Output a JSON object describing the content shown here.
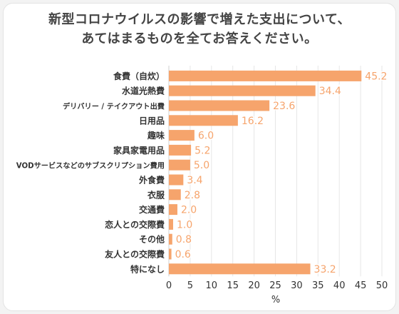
{
  "title_lines": [
    "新型コロナウイルスの影響で増えた支出について、",
    "あてはまるものを全てお答えください。"
  ],
  "chart_data": {
    "type": "bar",
    "orientation": "horizontal",
    "categories": [
      "食費（自炊）",
      "水道光熱費",
      "デリバリー / テイクアウト出費",
      "日用品",
      "趣味",
      "家具家電用品",
      "VODサービスなどのサブスクリプション費用",
      "外食費",
      "衣服",
      "交通費",
      "恋人との交際費",
      "その他",
      "友人との交際費",
      "特になし"
    ],
    "values": [
      45.2,
      34.4,
      23.6,
      16.2,
      6.0,
      5.2,
      5.0,
      3.4,
      2.8,
      2.0,
      1.0,
      0.8,
      0.6,
      33.2
    ],
    "value_labels": [
      "45.2",
      "34.4",
      "23.6",
      "16.2",
      "6.0",
      "5.2",
      "5.0",
      "3.4",
      "2.8",
      "2.0",
      "1.0",
      "0.8",
      "0.6",
      "33.2"
    ],
    "xlabel": "%",
    "xlim": [
      0,
      50
    ],
    "xticks": [
      0,
      5,
      10,
      15,
      20,
      25,
      30,
      35,
      40,
      45,
      50
    ],
    "grid": "vertical",
    "bar_color": "#f6a46c",
    "grid_color": "#e6e6e6",
    "label_color": "#f6a46c",
    "text_color": "#333333"
  }
}
